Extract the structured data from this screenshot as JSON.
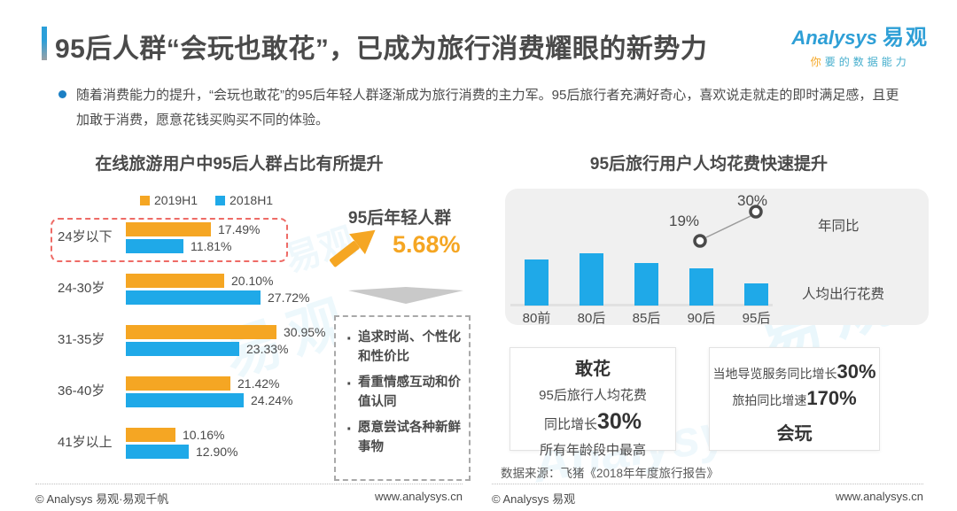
{
  "header": {
    "title": "95后人群“会玩也敢花”，已成为旅行消费耀眼的新势力",
    "logo_brand": "Analysys",
    "logo_cn": "易观",
    "tagline_first": "你",
    "tagline_rest": "要的数据能力"
  },
  "intro": {
    "text": "随着消费能力的提升，“会玩也敢花”的95后年轻人群逐渐成为旅行消费的主力军。95后旅行者充满好奇心，喜欢说走就走的即时满足感，且更加敢于消费，愿意花钱买购买不同的体验。"
  },
  "chart_data": [
    {
      "type": "bar",
      "orientation": "horizontal-grouped",
      "title": "在线旅游用户中95后人群占比有所提升",
      "categories": [
        "24岁以下",
        "24-30岁",
        "31-35岁",
        "36-40岁",
        "41岁以上"
      ],
      "series": [
        {
          "name": "2019H1",
          "color": "#F5A623",
          "values": [
            17.49,
            20.1,
            30.95,
            21.42,
            10.16
          ]
        },
        {
          "name": "2018H1",
          "color": "#1FA9E8",
          "values": [
            11.81,
            27.72,
            23.33,
            24.24,
            12.9
          ]
        }
      ],
      "unit": "%",
      "legend_position": "top",
      "annotation": "24岁以下组以红色虚线框突出"
    },
    {
      "type": "bar",
      "title": "95后旅行用户人均花费快速提升",
      "categories": [
        "80前",
        "80后",
        "85后",
        "90后",
        "95后"
      ],
      "series": [
        {
          "name": "人均出行花费",
          "type": "bar",
          "color": "#1FA9E8",
          "values_relative": [
            0.88,
            1.0,
            0.81,
            0.71,
            0.42
          ]
        },
        {
          "name": "年同比",
          "type": "line",
          "values": [
            null,
            null,
            null,
            "19%",
            "30%"
          ]
        }
      ],
      "notes": "柱形无数值标签，仅示意相对高度；折线仅标注90后19%与95后30%"
    }
  ],
  "middle": {
    "label": "95后年轻人群",
    "value": "5.68%",
    "points": [
      "追求时尚、个性化和性价比",
      "看重情感互动和价值认同",
      "愿意尝试各种新鲜事物"
    ]
  },
  "boxes": {
    "ganhua": {
      "title": "敢花",
      "line1": "95后旅行人均花费",
      "line2_prefix": "同比增长",
      "line2_value": "30%",
      "line3": "所有年龄段中最高"
    },
    "huiwan": {
      "line1_prefix": "当地导览服务同比增长",
      "line1_value": "30%",
      "line2_prefix": "旅拍同比增速",
      "line2_value": "170%",
      "title": "会玩"
    }
  },
  "source": "数据来源：飞猪《2018年年度旅行报告》",
  "footer": {
    "left_copyright": "© Analysys 易观·易观千帆",
    "left_url": "www.analysys.cn",
    "right_copyright": "© Analysys 易观",
    "right_url": "www.analysys.cn"
  },
  "watermark": {
    "cn": "易观",
    "en": "Analysys"
  },
  "colors": {
    "orange": "#F5A623",
    "blue": "#1FA9E8",
    "highlight_red": "#EE6B66",
    "panel_gray": "#F0F0F0",
    "text": "#4A4A4A",
    "brand_blue": "#2E9FD6"
  }
}
